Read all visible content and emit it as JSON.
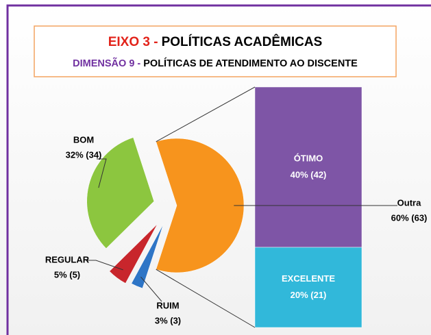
{
  "chart_data": {
    "type": "bar-of-pie",
    "title": {
      "lines": [
        [
          {
            "text": "EIXO 3 -",
            "color": "#e2231a"
          },
          {
            "text": "POLÍTICAS ACADÊMICAS",
            "color": "#000000"
          }
        ],
        [
          {
            "text": "DIMENSÃO 9 -",
            "color": "#7030a0"
          },
          {
            "text": "POLÍTICAS DE ATENDIMENTO AO DISCENTE",
            "color": "#000000"
          }
        ]
      ]
    },
    "pie": {
      "categories": [
        "Outra",
        "RUIM",
        "REGULAR",
        "BOM"
      ],
      "values": [
        63,
        3,
        5,
        34
      ],
      "value_labels": [
        "60% (63)",
        "3% (3)",
        "5% (5)",
        "32% (34)"
      ],
      "colors": [
        "#f7941d",
        "#2e75c6",
        "#c8262c",
        "#8cc63f"
      ]
    },
    "bar": {
      "categories": [
        "ÓTIMO",
        "EXCELENTE"
      ],
      "values": [
        42,
        21
      ],
      "value_labels": [
        "40% (42)",
        "20% (21)"
      ],
      "colors": [
        "#7e55a6",
        "#31b8da"
      ]
    }
  }
}
